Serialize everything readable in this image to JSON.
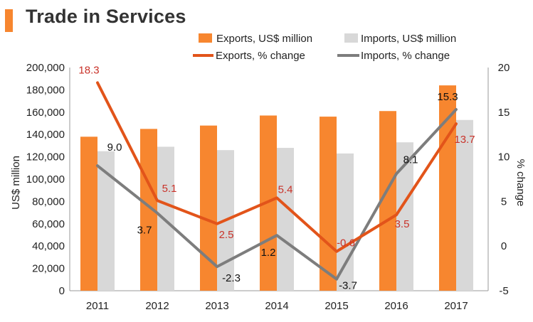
{
  "title": "Trade in Services",
  "colors": {
    "exports_bar": "#f7862f",
    "imports_bar": "#d8d8d8",
    "exports_line": "#e2541a",
    "imports_line": "#7d7d7d",
    "exports_label": "#c9332a",
    "imports_label": "#111111",
    "accent": "#f7862f"
  },
  "chart_data": {
    "type": "bar+line",
    "title": "Trade in Services",
    "categories": [
      "2011",
      "2012",
      "2013",
      "2014",
      "2015",
      "2016",
      "2017"
    ],
    "bar_series": [
      {
        "name": "Exports, US$ million",
        "values": [
          138000,
          145000,
          148000,
          157000,
          156000,
          161000,
          184000
        ]
      },
      {
        "name": "Imports, US$ million",
        "values": [
          125000,
          129000,
          126000,
          128000,
          123000,
          133000,
          153000
        ]
      }
    ],
    "line_series": [
      {
        "name": "Exports, % change",
        "values": [
          18.3,
          5.1,
          2.5,
          5.4,
          -0.6,
          3.5,
          13.7
        ],
        "labels": [
          "18.3",
          "5.1",
          "2.5",
          "5.4",
          "-0.6",
          "3.5",
          "13.7"
        ]
      },
      {
        "name": "Imports, % change",
        "values": [
          9.0,
          3.7,
          -2.3,
          1.2,
          -3.7,
          8.1,
          15.3
        ],
        "labels": [
          "9.0",
          "3.7",
          "-2.3",
          "1.2",
          "-3.7",
          "8.1",
          "15.3"
        ]
      }
    ],
    "y_left": {
      "label": "US$ million",
      "min": 0,
      "max": 200000,
      "ticks": [
        "0",
        "20,000",
        "40,000",
        "60,000",
        "80,000",
        "100,000",
        "120,000",
        "140,000",
        "160,000",
        "180,000",
        "200,000"
      ]
    },
    "y_right": {
      "label": "% change",
      "min": -5,
      "max": 20,
      "ticks": [
        "-5",
        "0",
        "5",
        "10",
        "15",
        "20"
      ]
    },
    "legend": [
      "Exports, US$ million",
      "Imports, US$ million",
      "Exports, % change",
      "Imports, % change"
    ],
    "legend_position": "top",
    "grid": false
  }
}
